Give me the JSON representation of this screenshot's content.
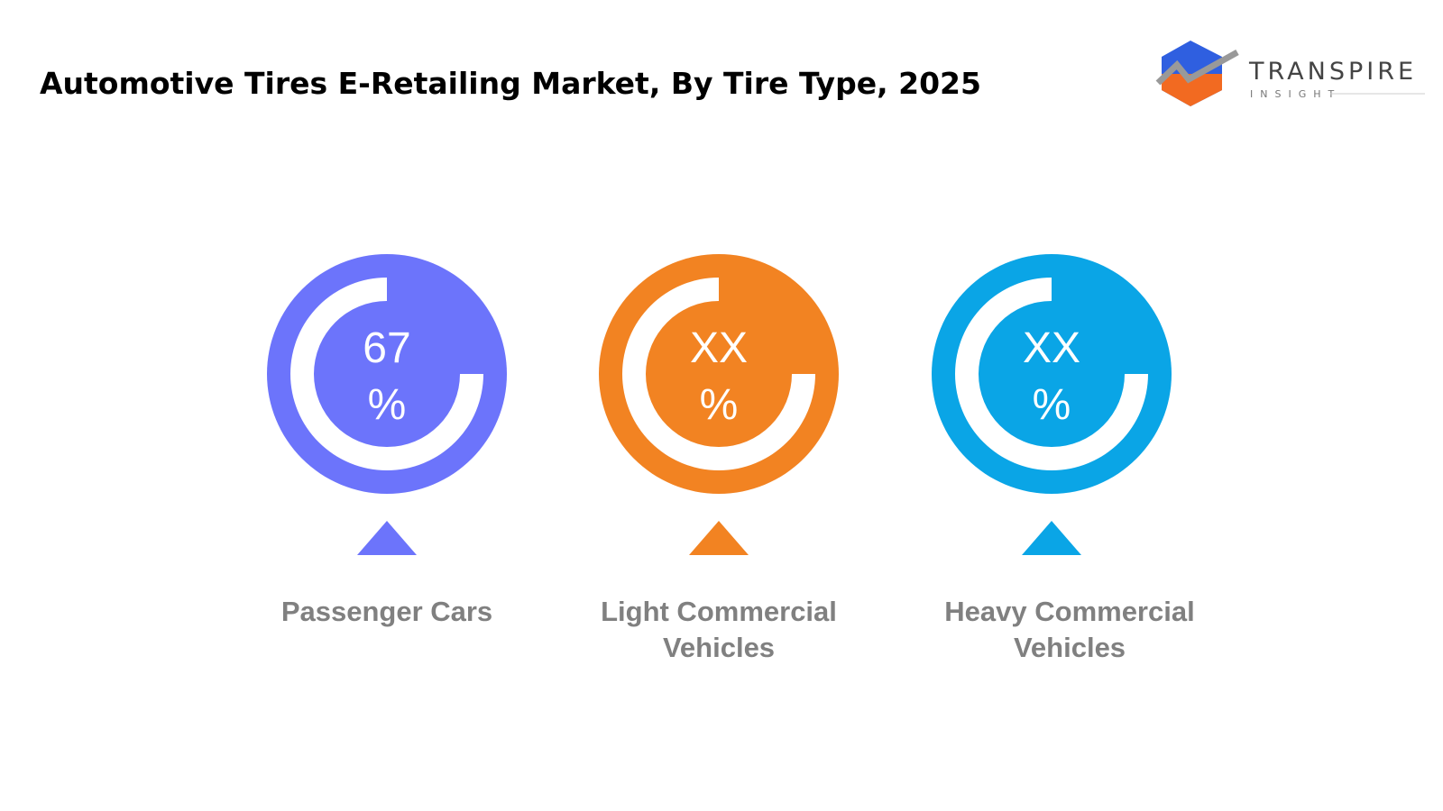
{
  "header": {
    "title": "Automotive Tires E-Retailing Market, By Tire Type, 2025"
  },
  "logo": {
    "name": "TRANSPIRE",
    "tagline": "INSIGHT"
  },
  "items": [
    {
      "value": "67",
      "unit": "%",
      "label": [
        "Passenger Cars"
      ],
      "color": "#6c74fb"
    },
    {
      "value": "XX",
      "unit": "%",
      "label": [
        "Light Commercial",
        "Vehicles"
      ],
      "color": "#f28322"
    },
    {
      "value": "XX",
      "unit": "%",
      "label": [
        "Heavy Commercial",
        "Vehicles"
      ],
      "color": "#0aa5e6"
    }
  ]
}
